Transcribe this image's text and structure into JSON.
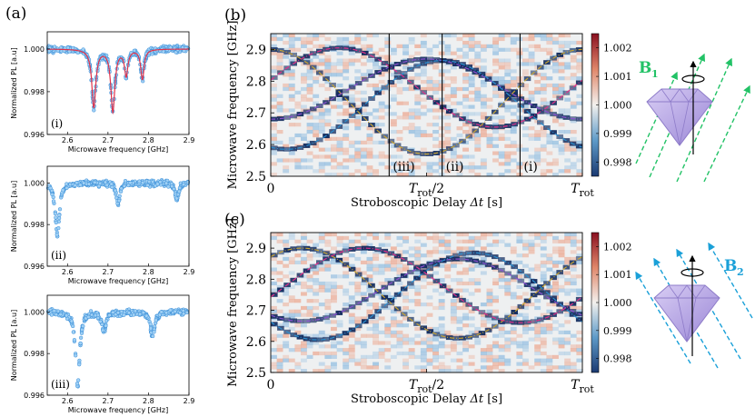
{
  "figure": {
    "panel_labels": [
      "(a)",
      "(b)",
      "(c)"
    ],
    "colors": {
      "accent_green": "#22c266",
      "accent_blue": "#1aa0d8",
      "fit_red": "#e0324a",
      "data_blue": "#4aa8e8",
      "diamond_purple": "#b9a7e6"
    },
    "field_labels": {
      "b1": "B",
      "b1_sub": "1",
      "b2": "B",
      "b2_sub": "2"
    }
  },
  "chart_data": [
    {
      "id": "a-i",
      "type": "scatter",
      "panel_tag": "(i)",
      "xlabel": "Microwave frequency [GHz]",
      "ylabel": "Normalized PL [a.u]",
      "xlim": [
        2.55,
        2.9
      ],
      "ylim": [
        0.996,
        1.0008
      ],
      "xticks": [
        "2.6",
        "2.7",
        "2.8",
        "2.9"
      ],
      "yticks": [
        "0.996",
        "0.998",
        "1.000"
      ],
      "baseline": 1.0,
      "dips": [
        {
          "x": 2.665,
          "depth": 0.0027,
          "w": 0.006
        },
        {
          "x": 2.712,
          "depth": 0.0029,
          "w": 0.006
        },
        {
          "x": 2.745,
          "depth": 0.0012,
          "w": 0.005
        },
        {
          "x": 2.785,
          "depth": 0.0014,
          "w": 0.005
        }
      ],
      "fit": true
    },
    {
      "id": "a-ii",
      "type": "scatter",
      "panel_tag": "(ii)",
      "xlabel": "Microwave frequency [GHz]",
      "ylabel": "Normalized PL [a.u]",
      "xlim": [
        2.55,
        2.9
      ],
      "ylim": [
        0.996,
        1.0008
      ],
      "xticks": [
        "2.6",
        "2.7",
        "2.8",
        "2.9"
      ],
      "yticks": [
        "0.996",
        "0.998",
        "1.000"
      ],
      "baseline": 1.0,
      "dips": [
        {
          "x": 2.575,
          "depth": 0.0025,
          "w": 0.006
        },
        {
          "x": 2.725,
          "depth": 0.001,
          "w": 0.005
        },
        {
          "x": 2.87,
          "depth": 0.0008,
          "w": 0.005
        }
      ],
      "fit": false
    },
    {
      "id": "a-iii",
      "type": "scatter",
      "panel_tag": "(iii)",
      "xlabel": "Microwave frequency [GHz]",
      "ylabel": "Normalized PL [a.u]",
      "xlim": [
        2.55,
        2.9
      ],
      "ylim": [
        0.996,
        1.0008
      ],
      "xticks": [
        "2.6",
        "2.7",
        "2.8",
        "2.9"
      ],
      "yticks": [
        "0.996",
        "0.998",
        "1.000"
      ],
      "baseline": 1.0,
      "dips": [
        {
          "x": 2.625,
          "depth": 0.0036,
          "w": 0.006
        },
        {
          "x": 2.69,
          "depth": 0.0009,
          "w": 0.006
        },
        {
          "x": 2.81,
          "depth": 0.0012,
          "w": 0.006
        }
      ],
      "fit": false
    },
    {
      "id": "b",
      "type": "heatmap",
      "ylabel": "Microwave frequency [GHz]",
      "xlabel": "Stroboscopic Delay Δt [s]",
      "ylim": [
        2.5,
        2.95
      ],
      "yticks": [
        "2.5",
        "2.6",
        "2.7",
        "2.8",
        "2.9"
      ],
      "xticks": [
        "0",
        "T_rot/2",
        "T_rot"
      ],
      "colorbar": {
        "ticks": [
          "0.998",
          "0.999",
          "1.000",
          "1.001",
          "1.002"
        ],
        "range": [
          0.9975,
          1.0025
        ]
      },
      "markers": [
        {
          "x": 0.38,
          "label": "(iii)"
        },
        {
          "x": 0.55,
          "label": "(ii)"
        },
        {
          "x": 0.8,
          "label": "(i)"
        }
      ],
      "curves": [
        {
          "name": "gold",
          "color": "#c8a432",
          "center": 2.735,
          "amp": 0.165,
          "phase": 0.0
        },
        {
          "name": "purple",
          "color": "#8a4fd0",
          "center": 2.775,
          "amp": 0.095,
          "phase": 0.5
        },
        {
          "name": "blue",
          "color": "#2a8fd0",
          "center": 2.725,
          "amp": 0.14,
          "phase": 0.55
        },
        {
          "name": "pink",
          "color": "#e0308a",
          "center": 2.78,
          "amp": 0.125,
          "phase": 0.22
        }
      ]
    },
    {
      "id": "c",
      "type": "heatmap",
      "ylabel": "Microwave frequency [GHz]",
      "xlabel": "Stroboscopic Delay Δt [s]",
      "ylim": [
        2.5,
        2.95
      ],
      "yticks": [
        "2.5",
        "2.6",
        "2.7",
        "2.8",
        "2.9"
      ],
      "xticks": [
        "0",
        "T_rot/2",
        "T_rot"
      ],
      "colorbar": {
        "ticks": [
          "0.998",
          "0.999",
          "1.000",
          "1.001",
          "1.002"
        ],
        "range": [
          0.9975,
          1.0025
        ]
      },
      "markers": [],
      "curves": [
        {
          "name": "gold",
          "color": "#c8a432",
          "center": 2.755,
          "amp": 0.145,
          "phase": 0.1
        },
        {
          "name": "purple",
          "color": "#8a4fd0",
          "center": 2.765,
          "amp": 0.1,
          "phase": 0.6
        },
        {
          "name": "blue",
          "color": "#2a8fd0",
          "center": 2.745,
          "amp": 0.14,
          "phase": 0.65
        },
        {
          "name": "pink",
          "color": "#e0308a",
          "center": 2.78,
          "amp": 0.12,
          "phase": 0.3
        }
      ]
    }
  ]
}
